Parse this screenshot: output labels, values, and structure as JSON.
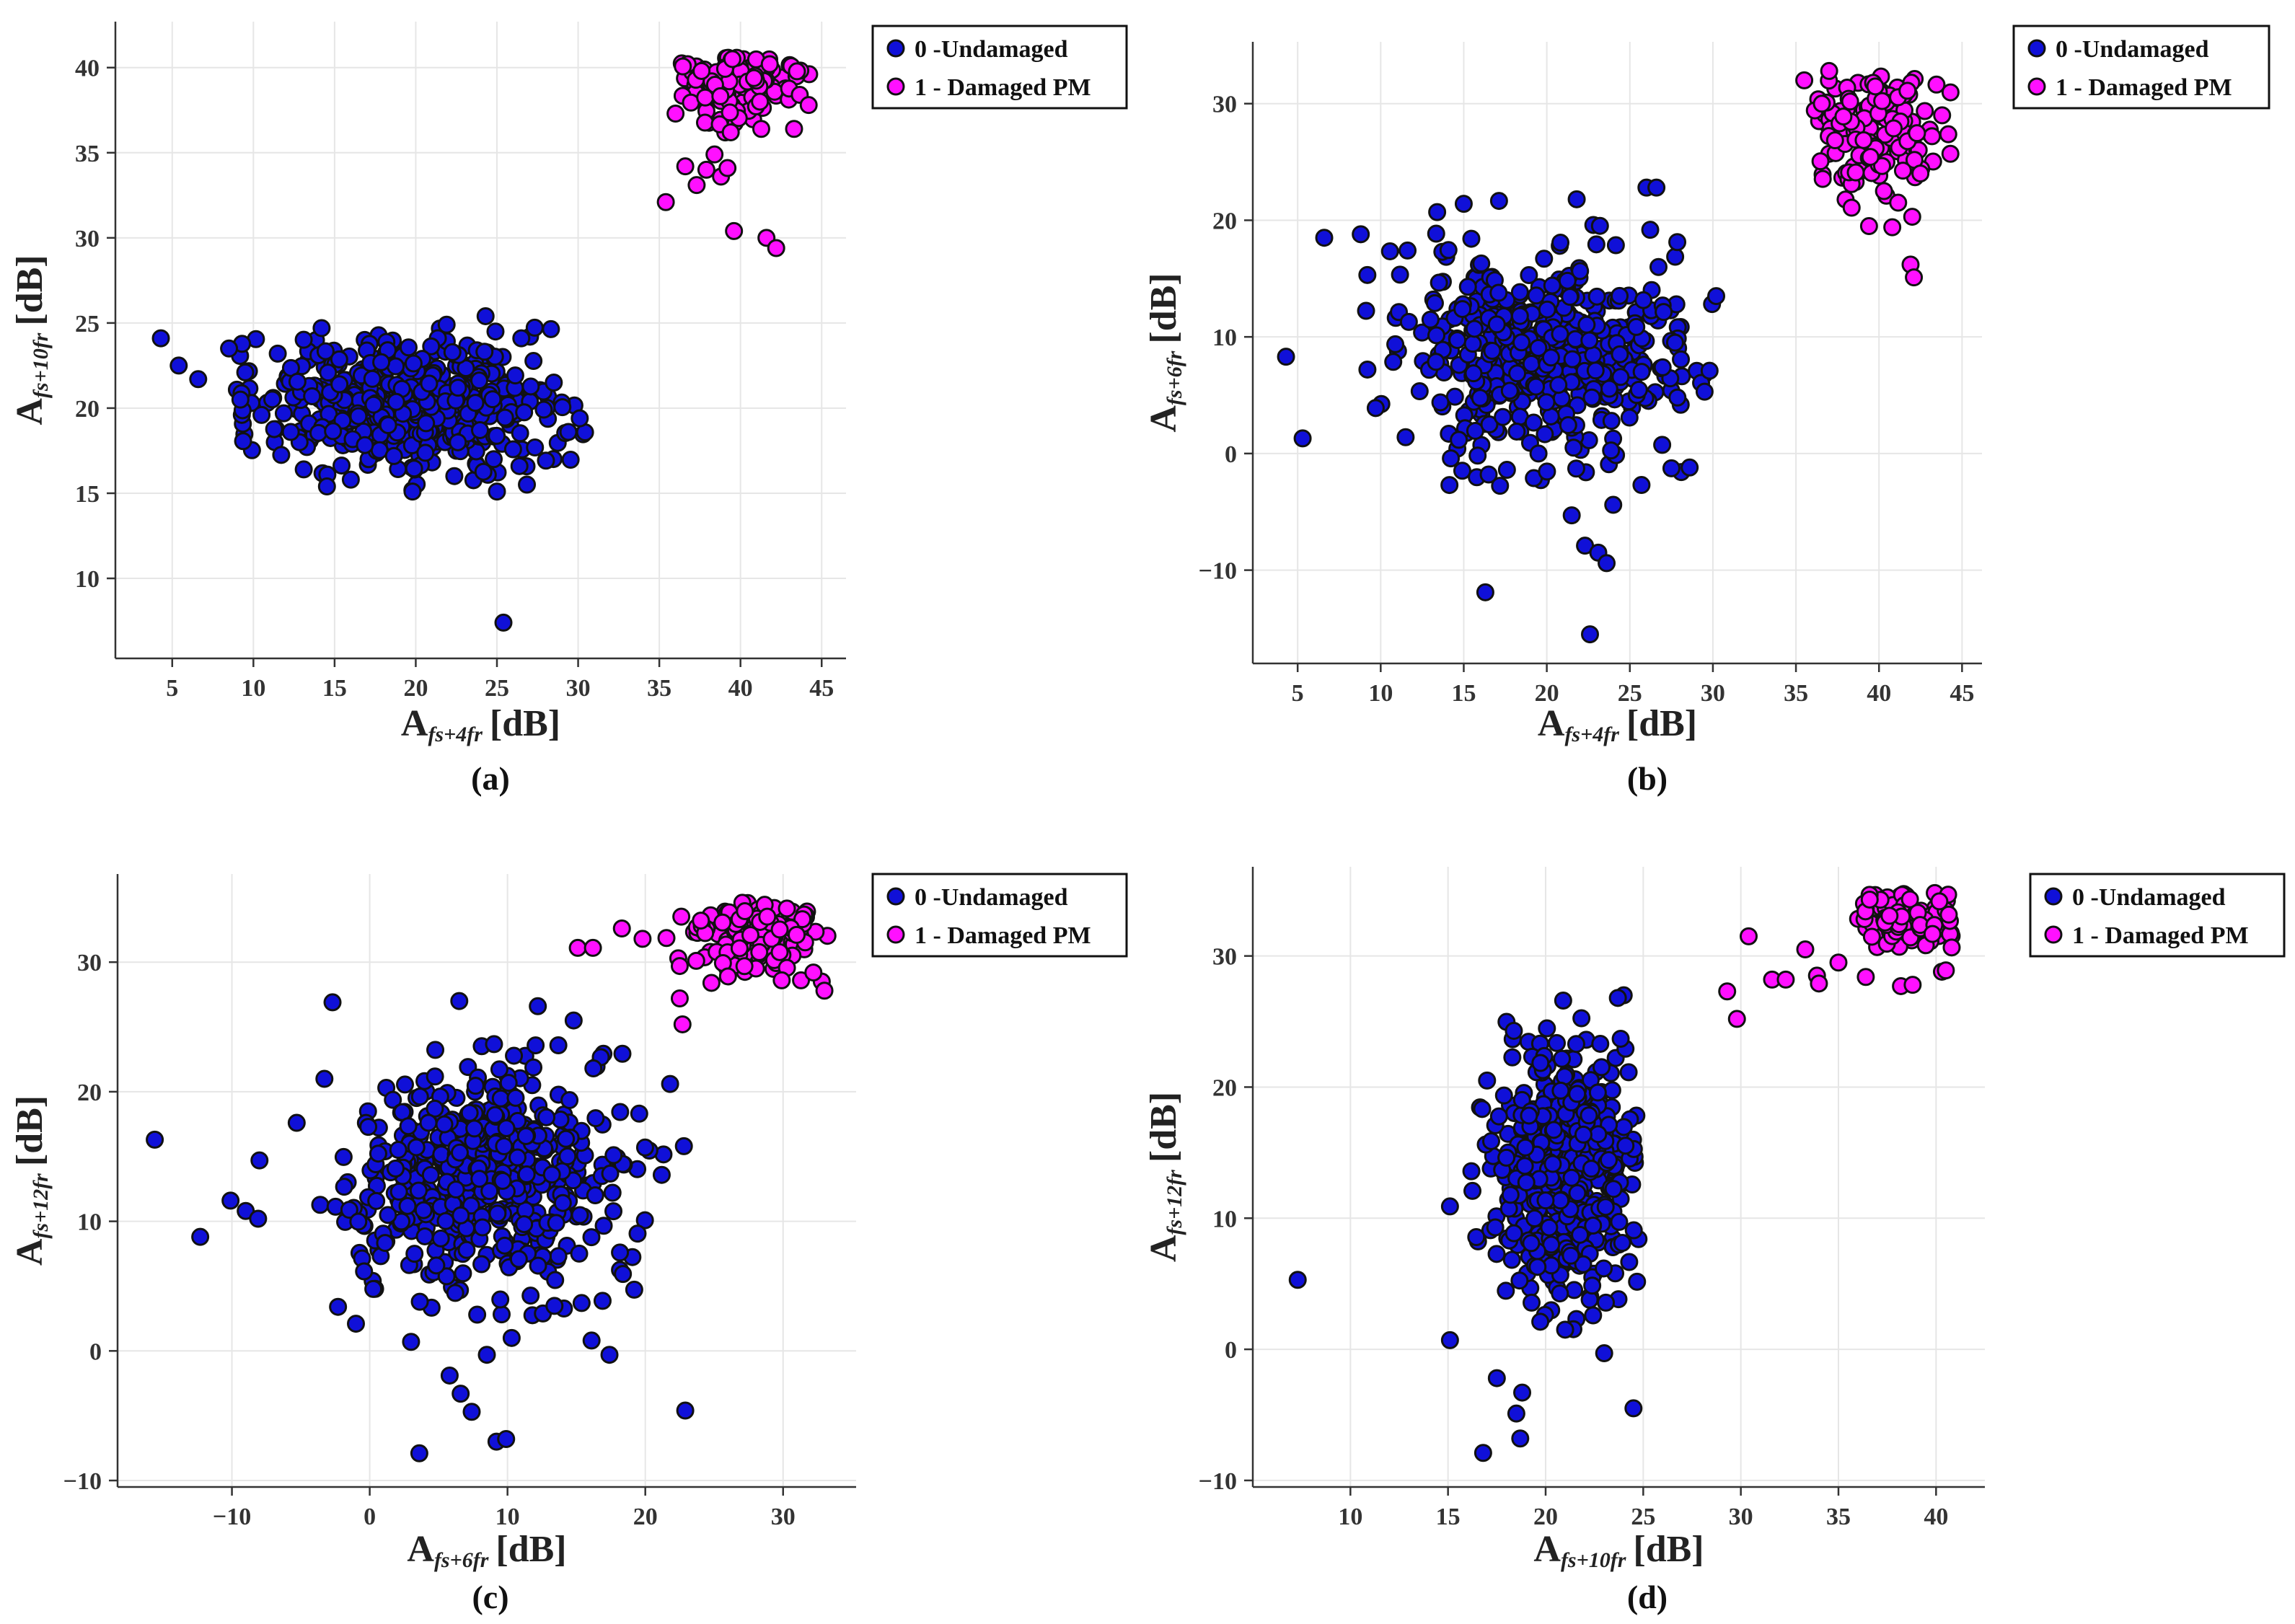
{
  "legend": {
    "undamaged": "0 -Undamaged",
    "damaged": "1 - Damaged PM"
  },
  "colors": {
    "undamaged": "#1010d8",
    "damaged": "#ff10ff",
    "marker_edge": "#111111"
  },
  "chart_data": [
    {
      "type": "scatter",
      "panel_label": "(a)",
      "xlabel": {
        "base": "A",
        "sub": "fs+4fr",
        "unit": "[dB]"
      },
      "ylabel": {
        "base": "A",
        "sub": "fs+10fr",
        "unit": "[dB]"
      },
      "xlim": [
        1.5,
        46.5
      ],
      "ylim": [
        5.3,
        42.7
      ],
      "xticks": [
        5,
        10,
        15,
        20,
        25,
        30,
        35,
        40,
        45
      ],
      "yticks": [
        10,
        15,
        20,
        25,
        30,
        35,
        40
      ],
      "grid": true,
      "legend_position": "outside-top-right",
      "undamaged_cloud": {
        "n": 500,
        "cx": 19.5,
        "cy": 20.3,
        "sx": 4.6,
        "sy": 1.9,
        "clip_x": [
          8.5,
          30.5
        ],
        "clip_y": [
          15,
          25.5
        ]
      },
      "damaged_cloud": {
        "n": 130,
        "cx": 40,
        "cy": 39,
        "sx": 2,
        "sy": 1.2,
        "clip_x": [
          36,
          44.5
        ],
        "clip_y": [
          36,
          40.6
        ]
      },
      "series": [
        {
          "name": "0 -Undamaged",
          "points": [
            [
              4.3,
              24.1
            ],
            [
              5.4,
              22.5
            ],
            [
              6.6,
              21.7
            ],
            [
              8.5,
              23.5
            ],
            [
              9.2,
              20.5
            ],
            [
              9.5,
              22.1
            ],
            [
              10.5,
              19.6
            ],
            [
              11.5,
              23.2
            ],
            [
              12.3,
              18.6
            ],
            [
              14.2,
              24.7
            ],
            [
              15.3,
              21.4
            ],
            [
              16.0,
              15.8
            ],
            [
              17.4,
              20.2
            ],
            [
              19.8,
              15.1
            ],
            [
              21.9,
              24.9
            ],
            [
              24.3,
              25.4
            ],
            [
              25.0,
              15.1
            ],
            [
              25.4,
              7.4
            ],
            [
              28.5,
              21.5
            ],
            [
              29.4,
              18.6
            ],
            [
              30.1,
              19.4
            ],
            [
              26.5,
              24.1
            ],
            [
              13.1,
              16.4
            ],
            [
              22.6,
              21.2
            ],
            [
              18.3,
              19.0
            ]
          ]
        },
        {
          "name": "1 - Damaged PM",
          "points": [
            [
              35.4,
              32.1
            ],
            [
              36.6,
              34.2
            ],
            [
              37.3,
              33.1
            ],
            [
              37.9,
              34.0
            ],
            [
              38.4,
              34.9
            ],
            [
              38.8,
              33.6
            ],
            [
              39.2,
              34.1
            ],
            [
              39.6,
              30.4
            ],
            [
              39.4,
              36.2
            ],
            [
              41.2,
              38.0
            ],
            [
              41.6,
              30.0
            ],
            [
              42.2,
              29.4
            ],
            [
              43.3,
              36.4
            ],
            [
              36.0,
              37.3
            ],
            [
              39.5,
              40.5
            ],
            [
              41.8,
              40.2
            ],
            [
              44.2,
              37.8
            ],
            [
              37.6,
              39.8
            ]
          ]
        }
      ]
    },
    {
      "type": "scatter",
      "panel_label": "(b)",
      "xlabel": {
        "base": "A",
        "sub": "fs+4fr",
        "unit": "[dB]"
      },
      "ylabel": {
        "base": "A",
        "sub": "fs+6fr",
        "unit": "[dB]"
      },
      "xlim": [
        2.3,
        46.2
      ],
      "ylim": [
        -18,
        35.3
      ],
      "xticks": [
        5,
        10,
        15,
        20,
        25,
        30,
        35,
        40,
        45
      ],
      "yticks": [
        -10,
        0,
        10,
        20,
        30
      ],
      "grid": true,
      "legend_position": "outside-top-right",
      "undamaged_cloud": {
        "n": 500,
        "cx": 19.5,
        "cy": 9.0,
        "sx": 4.4,
        "sy": 4.5,
        "clip_x": [
          9,
          30
        ],
        "clip_y": [
          -3,
          22
        ]
      },
      "damaged_cloud": {
        "n": 150,
        "cx": 39.8,
        "cy": 28.0,
        "sx": 2.2,
        "sy": 2.8,
        "clip_x": [
          36,
          44.5
        ],
        "clip_y": [
          21,
          32.5
        ]
      },
      "series": [
        {
          "name": "0 -Undamaged",
          "points": [
            [
              4.3,
              8.3
            ],
            [
              5.3,
              1.3
            ],
            [
              6.6,
              18.5
            ],
            [
              8.8,
              18.8
            ],
            [
              9.2,
              7.2
            ],
            [
              9.7,
              3.9
            ],
            [
              11.5,
              1.4
            ],
            [
              13.4,
              20.7
            ],
            [
              16.3,
              -11.9
            ],
            [
              16.5,
              -1.8
            ],
            [
              17.6,
              -1.4
            ],
            [
              19.5,
              0.0
            ],
            [
              21.5,
              -5.3
            ],
            [
              22.3,
              -7.9
            ],
            [
              22.6,
              -15.5
            ],
            [
              23.1,
              -8.5
            ],
            [
              23.6,
              -9.4
            ],
            [
              24.0,
              -4.4
            ],
            [
              21.8,
              21.8
            ],
            [
              26.0,
              22.8
            ],
            [
              26.6,
              22.8
            ],
            [
              28.6,
              -1.2
            ],
            [
              29.5,
              5.3
            ],
            [
              30.2,
              13.5
            ],
            [
              29.8,
              7.1
            ],
            [
              25.7,
              -2.7
            ]
          ]
        },
        {
          "name": "1 - Damaged PM",
          "points": [
            [
              35.5,
              32.0
            ],
            [
              37.0,
              32.8
            ],
            [
              39.4,
              19.5
            ],
            [
              40.3,
              22.5
            ],
            [
              40.8,
              19.4
            ],
            [
              41.9,
              16.2
            ],
            [
              42.1,
              15.1
            ],
            [
              42.0,
              20.3
            ],
            [
              44.3,
              25.7
            ],
            [
              38.6,
              24.1
            ],
            [
              43.8,
              29.0
            ]
          ]
        }
      ]
    },
    {
      "type": "scatter",
      "panel_label": "(c)",
      "xlabel": {
        "base": "A",
        "sub": "fs+6fr",
        "unit": "[dB]"
      },
      "ylabel": {
        "base": "A",
        "sub": "fs+12fr",
        "unit": "[dB]"
      },
      "xlim": [
        -18.3,
        35.3
      ],
      "ylim": [
        -10.5,
        36.8
      ],
      "xticks": [
        -10,
        0,
        10,
        20,
        30
      ],
      "yticks": [
        -10,
        0,
        10,
        20,
        30
      ],
      "grid": true,
      "legend_position": "outside-top-right",
      "undamaged_cloud": {
        "n": 500,
        "cx": 8.5,
        "cy": 13.0,
        "sx": 5.0,
        "sy": 4.6,
        "clip_x": [
          -5,
          22
        ],
        "clip_y": [
          1,
          25
        ]
      },
      "damaged_cloud": {
        "n": 140,
        "cx": 28.0,
        "cy": 32.0,
        "sx": 2.6,
        "sy": 1.5,
        "clip_x": [
          21.5,
          33.5
        ],
        "clip_y": [
          27.5,
          34.8
        ]
      },
      "series": [
        {
          "name": "0 -Undamaged",
          "points": [
            [
              -15.6,
              16.3
            ],
            [
              -12.3,
              8.8
            ],
            [
              -10.1,
              11.6
            ],
            [
              -9.0,
              10.8
            ],
            [
              -8.1,
              10.2
            ],
            [
              -8.0,
              14.7
            ],
            [
              -5.3,
              17.6
            ],
            [
              -2.7,
              26.9
            ],
            [
              -2.3,
              3.4
            ],
            [
              -1.0,
              2.1
            ],
            [
              3.0,
              0.7
            ],
            [
              3.6,
              -7.9
            ],
            [
              5.8,
              -1.9
            ],
            [
              6.6,
              -3.3
            ],
            [
              7.4,
              -4.7
            ],
            [
              8.5,
              -0.3
            ],
            [
              9.2,
              -7.0
            ],
            [
              9.9,
              -6.8
            ],
            [
              10.3,
              1.0
            ],
            [
              16.1,
              0.8
            ],
            [
              17.4,
              -0.3
            ],
            [
              22.9,
              -4.6
            ],
            [
              22.8,
              15.8
            ],
            [
              21.8,
              20.6
            ],
            [
              6.5,
              27.0
            ],
            [
              14.8,
              25.5
            ],
            [
              12.2,
              26.6
            ]
          ]
        },
        {
          "name": "1 - Damaged PM",
          "points": [
            [
              15.1,
              31.1
            ],
            [
              16.2,
              31.1
            ],
            [
              18.3,
              32.6
            ],
            [
              19.8,
              31.8
            ],
            [
              22.5,
              29.7
            ],
            [
              22.5,
              27.2
            ],
            [
              22.7,
              25.2
            ],
            [
              24.8,
              28.4
            ],
            [
              26.0,
              28.9
            ],
            [
              29.9,
              28.6
            ],
            [
              31.3,
              28.6
            ],
            [
              33.0,
              27.8
            ],
            [
              32.2,
              29.2
            ]
          ]
        }
      ]
    },
    {
      "type": "scatter",
      "panel_label": "(d)",
      "xlabel": {
        "base": "A",
        "sub": "fs+10fr",
        "unit": "[dB]"
      },
      "ylabel": {
        "base": "A",
        "sub": "fs+12fr",
        "unit": "[dB]"
      },
      "xlim": [
        5.0,
        42.5
      ],
      "ylim": [
        -10.5,
        36.8
      ],
      "xticks": [
        10,
        15,
        20,
        25,
        30,
        35,
        40
      ],
      "yticks": [
        -10,
        0,
        10,
        20,
        30
      ],
      "grid": true,
      "legend_position": "inside-top-right",
      "undamaged_cloud": {
        "n": 500,
        "cx": 20.8,
        "cy": 13.5,
        "sx": 1.8,
        "sy": 4.6,
        "clip_x": [
          16,
          24.8
        ],
        "clip_y": [
          1,
          26
        ]
      },
      "damaged_cloud": {
        "n": 120,
        "cx": 38.5,
        "cy": 32.5,
        "sx": 1.4,
        "sy": 1.3,
        "clip_x": [
          36,
          40.8
        ],
        "clip_y": [
          29.5,
          34.8
        ]
      },
      "series": [
        {
          "name": "0 -Undamaged",
          "points": [
            [
              7.3,
              5.3
            ],
            [
              15.1,
              10.9
            ],
            [
              15.1,
              0.7
            ],
            [
              16.8,
              -7.9
            ],
            [
              17.5,
              -2.2
            ],
            [
              18.5,
              -4.9
            ],
            [
              18.7,
              -6.8
            ],
            [
              18.8,
              -3.3
            ],
            [
              21.0,
              1.5
            ],
            [
              23.0,
              -0.3
            ],
            [
              24.5,
              -4.5
            ],
            [
              24.0,
              27.0
            ],
            [
              23.7,
              26.8
            ],
            [
              22.8,
              23.3
            ],
            [
              20.9,
              26.6
            ],
            [
              17.0,
              20.5
            ]
          ]
        },
        {
          "name": "1 - Damaged PM",
          "points": [
            [
              29.3,
              27.3
            ],
            [
              29.8,
              25.2
            ],
            [
              30.4,
              31.5
            ],
            [
              31.6,
              28.2
            ],
            [
              32.3,
              28.2
            ],
            [
              33.3,
              30.5
            ],
            [
              33.9,
              28.5
            ],
            [
              34.0,
              27.9
            ],
            [
              35.0,
              29.5
            ],
            [
              36.4,
              28.4
            ],
            [
              36.6,
              34.3
            ],
            [
              38.2,
              27.7
            ],
            [
              38.8,
              27.8
            ],
            [
              40.3,
              28.8
            ],
            [
              40.5,
              28.9
            ]
          ]
        }
      ]
    }
  ]
}
